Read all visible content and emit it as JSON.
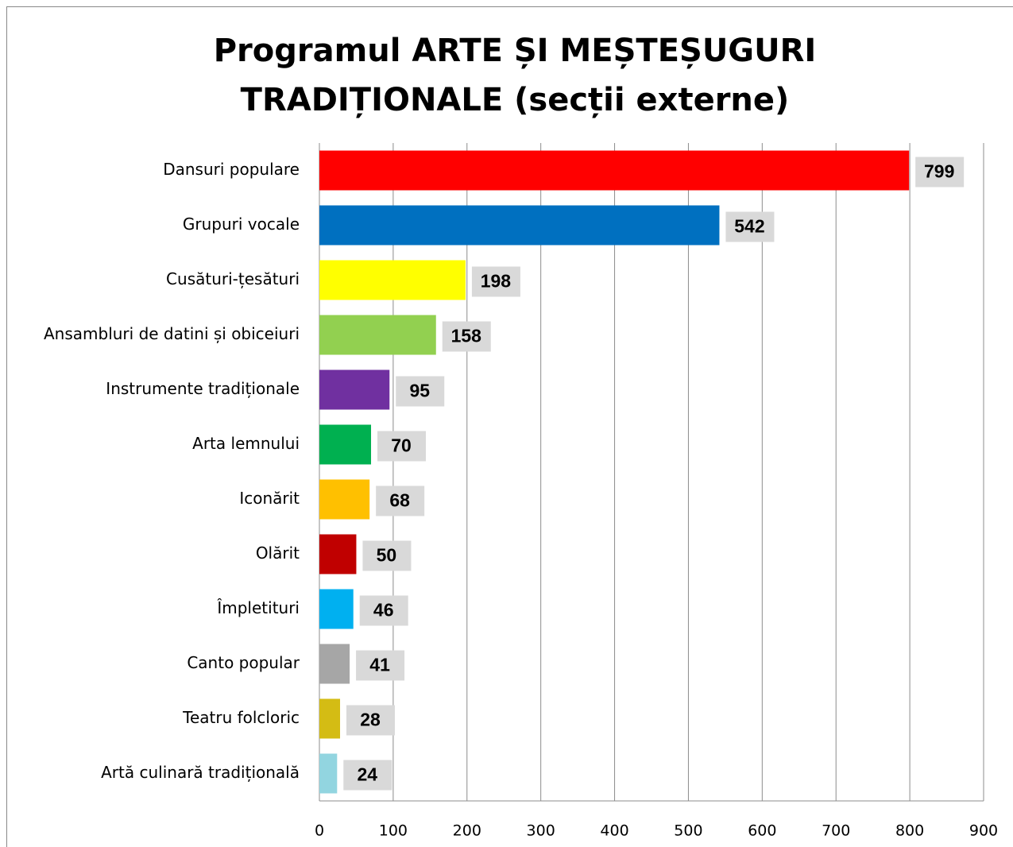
{
  "chart_data": {
    "type": "bar",
    "orientation": "horizontal",
    "title": [
      "Programul ARTE ȘI MEȘTEȘUGURI",
      "TRADIȚIONALE (secții externe)"
    ],
    "categories": [
      "Dansuri populare",
      "Grupuri vocale",
      "Cusături-țesături",
      "Ansambluri de datini și obiceiuri",
      "Instrumente tradiționale",
      "Arta lemnului",
      "Iconărit",
      "Olărit",
      "Împletituri",
      "Canto popular",
      "Teatru folcloric",
      "Artă culinară tradițională"
    ],
    "values": [
      799,
      542,
      198,
      158,
      95,
      70,
      68,
      50,
      46,
      41,
      28,
      24
    ],
    "colors": [
      "#ff0000",
      "#0070c0",
      "#ffff00",
      "#92d050",
      "#7030a0",
      "#00b050",
      "#ffc000",
      "#c00000",
      "#00b0f0",
      "#a6a6a6",
      "#d4bc14",
      "#92d5e0"
    ],
    "xlim": [
      0,
      900
    ],
    "xticks": [
      0,
      100,
      200,
      300,
      400,
      500,
      600,
      700,
      800,
      900
    ],
    "grid": true
  }
}
